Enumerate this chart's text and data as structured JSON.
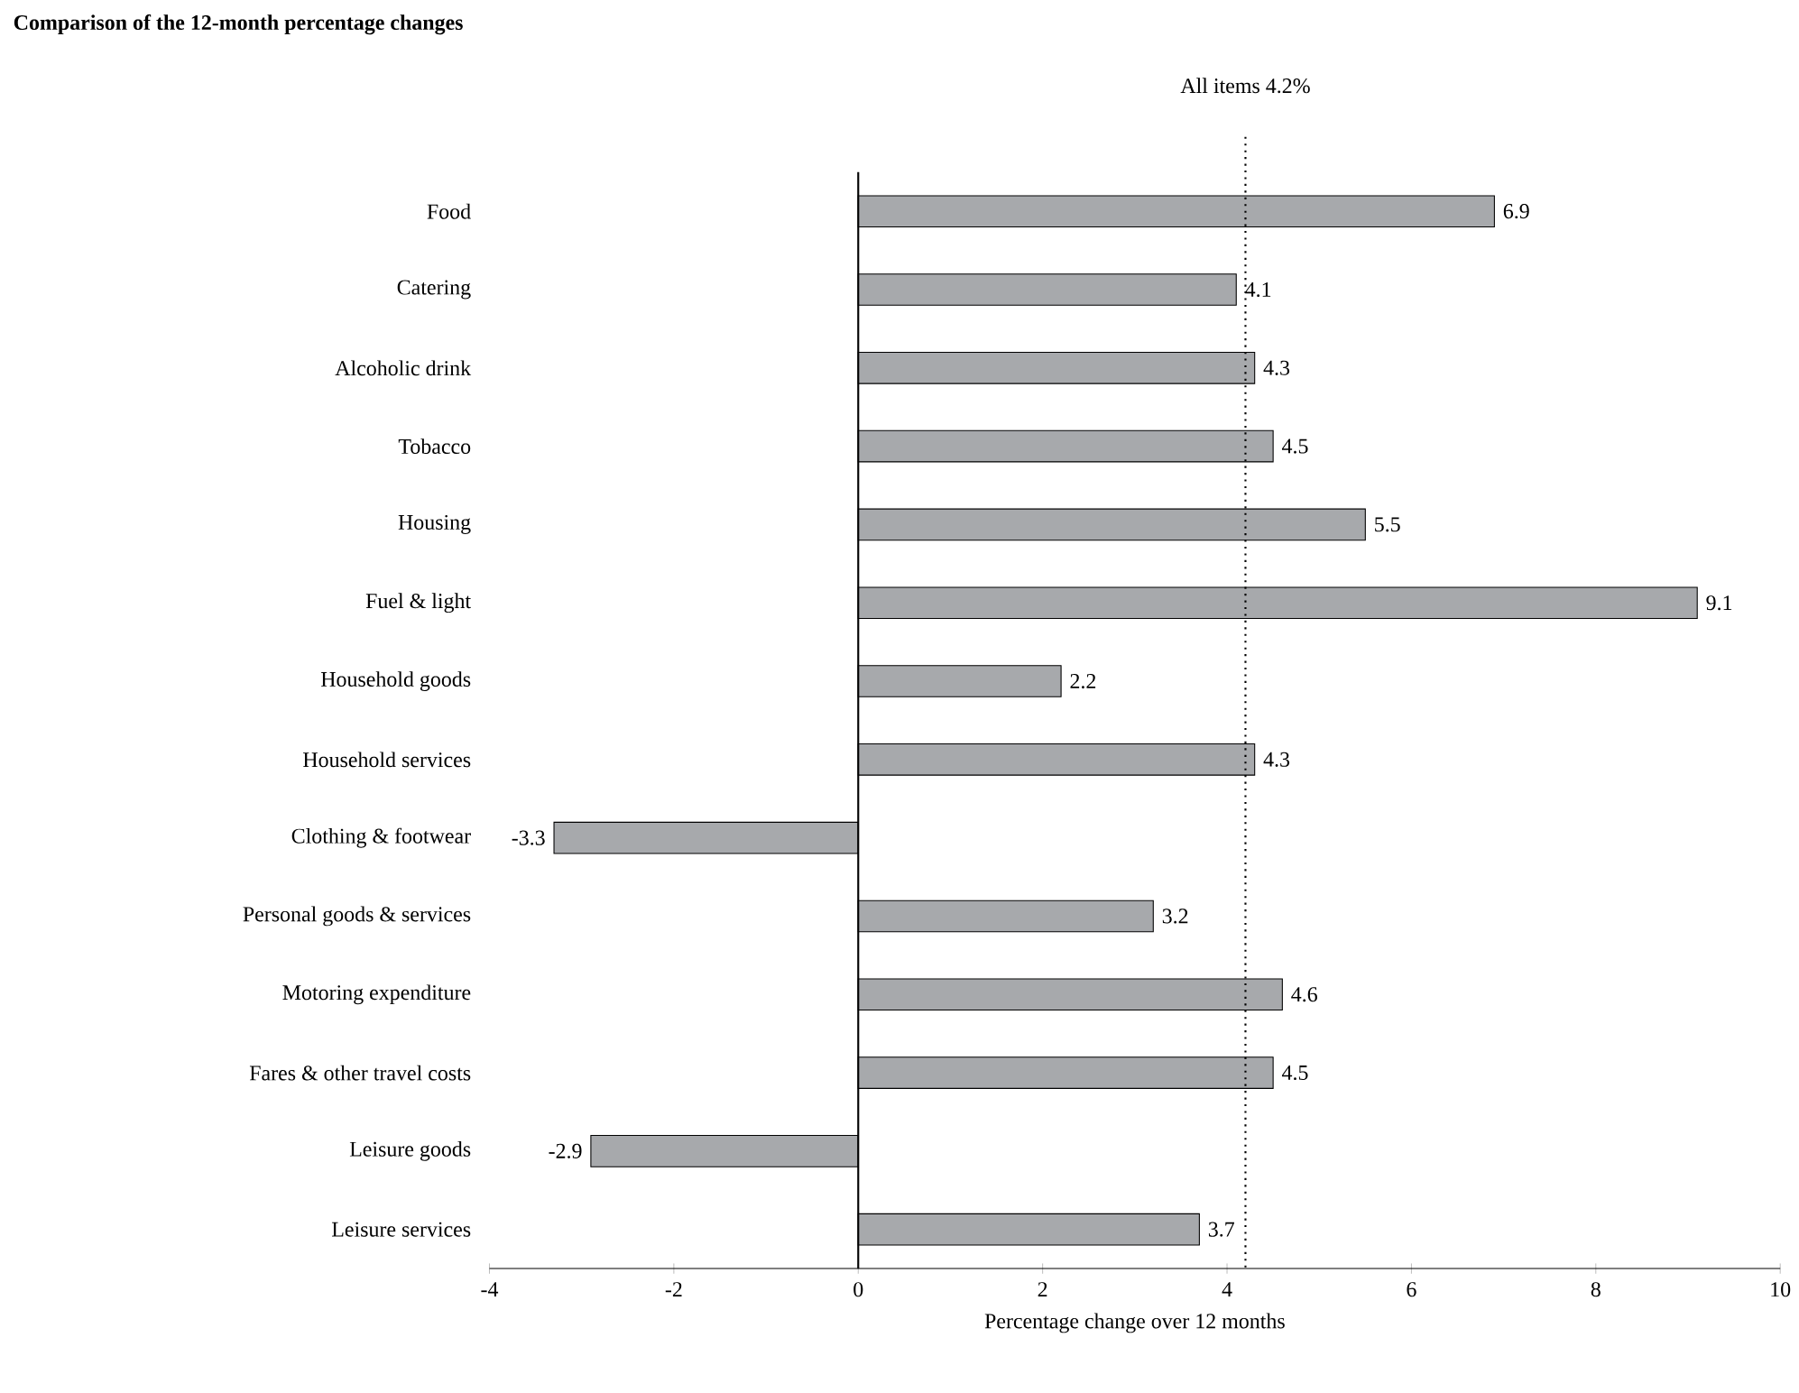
{
  "chart_data": {
    "type": "bar",
    "orientation": "horizontal",
    "title": "Comparison of the 12-month percentage changes",
    "xlabel": "Percentage change over 12 months",
    "categories": [
      "Food",
      "Catering",
      "Alcoholic drink",
      "Tobacco",
      "Housing",
      "Fuel & light",
      "Household goods",
      "Household services",
      "Clothing & footwear",
      "Personal goods & services",
      "Motoring expenditure",
      "Fares & other travel costs",
      "Leisure goods",
      "Leisure services"
    ],
    "values": [
      6.9,
      4.1,
      4.3,
      4.5,
      5.5,
      9.1,
      2.2,
      4.3,
      -3.3,
      3.2,
      4.6,
      4.5,
      -2.9,
      3.7
    ],
    "color": "#a7a9ac",
    "xlim": [
      -4,
      10
    ],
    "xticks": [
      -4,
      -2,
      0,
      2,
      4,
      6,
      8,
      10
    ],
    "data_labels": true,
    "ref_lines": [
      {
        "axis": "x",
        "value": 4.2,
        "label": "All items 4.2%",
        "line_style": "dotted",
        "color": "#000000"
      }
    ]
  }
}
